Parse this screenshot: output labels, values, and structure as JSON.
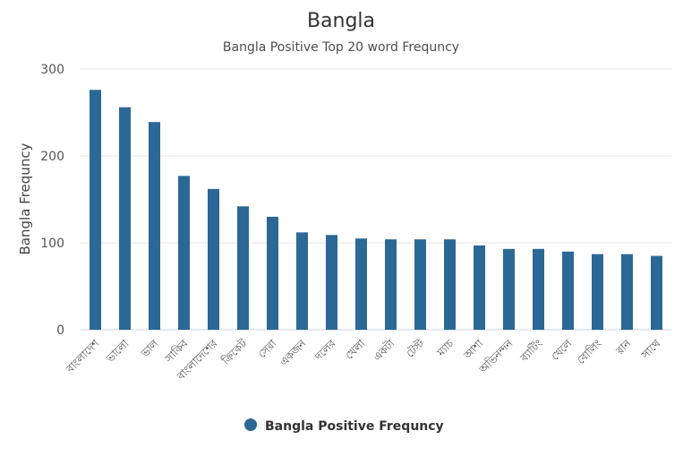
{
  "chart_data": {
    "type": "bar",
    "title": "Bangla",
    "subtitle": "Bangla Positive Top 20 word Frequncy",
    "ylabel": "Bangla Frequncy",
    "xlabel": "",
    "ylim": [
      0,
      300
    ],
    "yticks": [
      0,
      100,
      200,
      300
    ],
    "grid": true,
    "legend_position": "bottom",
    "color": "#2b6896",
    "categories": [
      "বাংলাদেশ",
      "ভালো",
      "ভাল",
      "সাকিব",
      "বাংলাদেশের",
      "ক্রিকেট",
      "সেরা",
      "একজন",
      "দলের",
      "খেলা",
      "একটা",
      "টেস্ট",
      "ম্যাচ",
      "আশা",
      "অভিনন্দন",
      "ব্যাটিং",
      "খেলে",
      "বোলিং",
      "রান",
      "সাথে"
    ],
    "series": [
      {
        "name": "Bangla Positive Frequncy",
        "values": [
          276,
          256,
          239,
          177,
          162,
          142,
          130,
          112,
          109,
          105,
          104,
          104,
          104,
          97,
          93,
          93,
          90,
          87,
          87,
          85
        ]
      }
    ]
  }
}
